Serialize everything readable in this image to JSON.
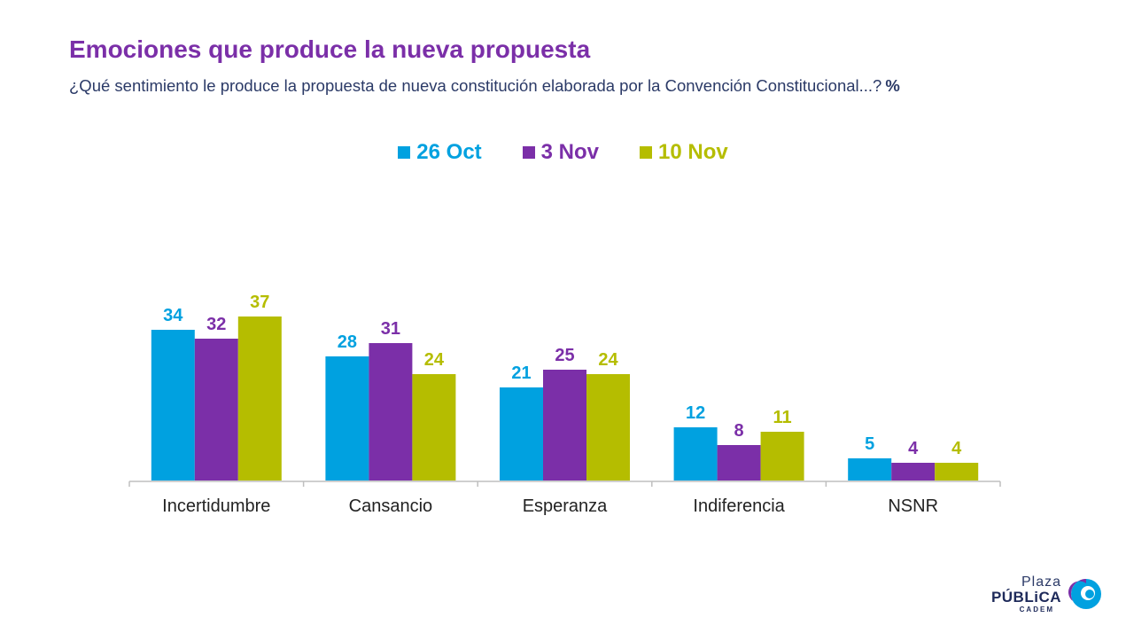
{
  "header": {
    "title": "Emociones que produce la nueva propuesta",
    "subtitle": "¿Qué sentimiento le produce la propuesta de nueva constitución elaborada por la Convención Constitucional...?",
    "unit": "%"
  },
  "logo": {
    "top_text": "Plaza",
    "main_text": "PÚBLiCA",
    "sub_text": "CADEM"
  },
  "chart_data": {
    "type": "bar",
    "title": "Emociones que produce la nueva propuesta",
    "categories": [
      "Incertidumbre",
      "Cansancio",
      "Esperanza",
      "Indiferencia",
      "NSNR"
    ],
    "series": [
      {
        "name": "26 Oct",
        "color": "#00a1e0",
        "values": [
          34,
          28,
          21,
          12,
          5
        ]
      },
      {
        "name": "3 Nov",
        "color": "#7b2fa8",
        "values": [
          32,
          31,
          25,
          8,
          4
        ]
      },
      {
        "name": "10 Nov",
        "color": "#b5bd00",
        "values": [
          37,
          24,
          24,
          11,
          4
        ]
      }
    ],
    "ylim": [
      0,
      37
    ],
    "legend_position": "top-center",
    "grid": false
  }
}
